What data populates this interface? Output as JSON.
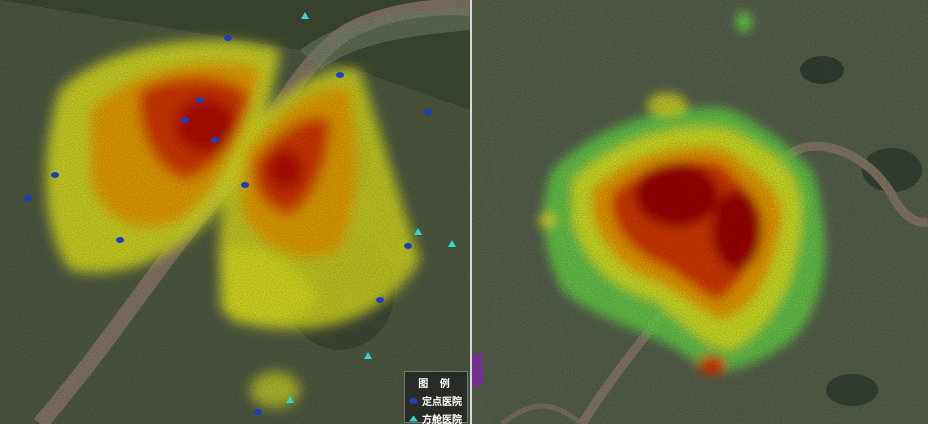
{
  "legend": {
    "title": "图 例",
    "items": [
      {
        "label": "定点医院",
        "icon": "designated-hospital-icon",
        "color": "#1e3fb8"
      },
      {
        "label": "方舱医院",
        "icon": "fangcang-hospital-icon",
        "color": "#33d6d6"
      }
    ]
  },
  "colors": {
    "heat_high": "#a80000",
    "heat_med_high": "#e03a00",
    "heat_med": "#f4a300",
    "heat_low": "#e8ef22",
    "heat_min": "#6fe04a",
    "river": "#8a7a68",
    "land": "#4b5a3d"
  }
}
